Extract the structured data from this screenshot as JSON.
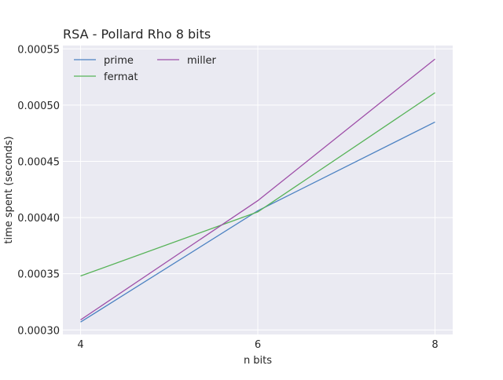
{
  "chart_data": {
    "type": "line",
    "title": "RSA - Pollard Rho 8 bits",
    "xlabel": "n bits",
    "ylabel": "time spent (seconds)",
    "x": [
      4,
      6,
      8
    ],
    "xticks": [
      4,
      6,
      8
    ],
    "xlim": [
      3.8,
      8.2
    ],
    "yticks": [
      0.0003,
      0.00035,
      0.0004,
      0.00045,
      0.0005,
      0.00055
    ],
    "ytick_labels": [
      "0.00030",
      "0.00035",
      "0.00040",
      "0.00045",
      "0.00050",
      "0.00055"
    ],
    "ylim": [
      0.000296,
      0.000553
    ],
    "grid": true,
    "legend_placement": "top-left",
    "background_color": "#eaeaf2",
    "series": [
      {
        "name": "prime",
        "color": "#4c82c2",
        "values": [
          0.000307,
          0.000406,
          0.000485
        ]
      },
      {
        "name": "fermat",
        "color": "#57b358",
        "values": [
          0.000348,
          0.000405,
          0.000511
        ]
      },
      {
        "name": "miller",
        "color": "#9e4fa8",
        "values": [
          0.000309,
          0.000415,
          0.000541
        ]
      }
    ]
  }
}
